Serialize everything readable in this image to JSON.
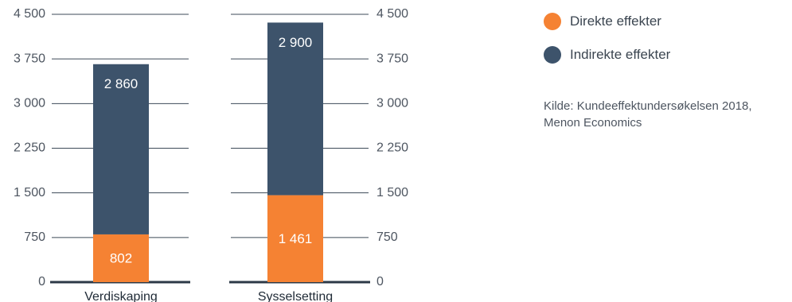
{
  "chart_data": {
    "type": "bar",
    "stacked": true,
    "categories": [
      "Verdiskaping",
      "Sysselsetting"
    ],
    "series": [
      {
        "name": "Direkte effekter",
        "values": [
          802,
          1461
        ],
        "color": "#f58233"
      },
      {
        "name": "Indirekte effekter",
        "values": [
          2860,
          2900
        ],
        "color": "#3d536b"
      }
    ],
    "data_labels": {
      "Direkte effekter": [
        "802",
        "1 461"
      ],
      "Indirekte effekter": [
        "2 860",
        "2 900"
      ]
    },
    "left_axis": {
      "ylim": [
        0,
        4500
      ],
      "ticks": [
        0,
        750,
        1500,
        2250,
        3000,
        3750,
        4500
      ],
      "tick_labels": [
        "0",
        "750",
        "1 500",
        "2 250",
        "3 000",
        "3 750",
        "4 500"
      ]
    },
    "right_axis": {
      "ylim": [
        0,
        4500
      ],
      "ticks": [
        0,
        750,
        1500,
        2250,
        3000,
        3750,
        4500
      ],
      "tick_labels": [
        "0",
        "750",
        "1 500",
        "2 250",
        "3 000",
        "3 750",
        "4 500"
      ]
    },
    "grid": true,
    "legend_position": "top-right"
  },
  "legend": {
    "items": [
      {
        "label": "Direkte effekter",
        "color": "#f58233"
      },
      {
        "label": "Indirekte effekter",
        "color": "#3d536b"
      }
    ]
  },
  "source": {
    "line1": "Kilde: Kundeeffektundersøkelsen 2018,",
    "line2": "Menon Economics"
  }
}
